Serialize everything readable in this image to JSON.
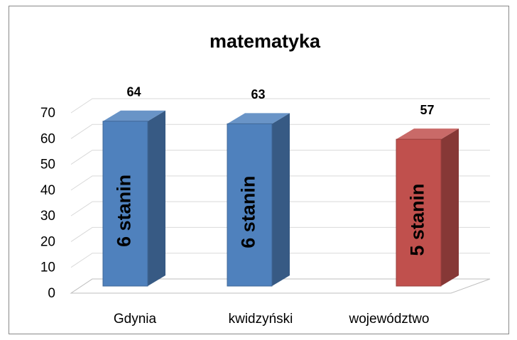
{
  "chart_data": {
    "type": "bar3d",
    "title": "matematyka",
    "categories": [
      "Gdynia",
      "kwidzyński",
      "województwo"
    ],
    "values": [
      64,
      63,
      57
    ],
    "colors": [
      "#4f81bd",
      "#4f81bd",
      "#c0504d"
    ],
    "annotations": [
      "6 stanin",
      "6 stanin",
      "5 stanin"
    ],
    "ylim": [
      0,
      70
    ],
    "yticks": [
      0,
      10,
      20,
      30,
      40,
      50,
      60,
      70
    ],
    "grid": true
  }
}
